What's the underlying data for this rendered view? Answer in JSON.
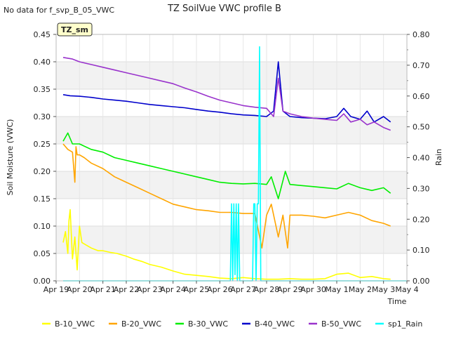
{
  "no_data_note": "No data for f_svp_B_05_VWC",
  "chart_data": {
    "type": "line",
    "title": "TZ SoilVue VWC profile B",
    "site_badge": "TZ_sm",
    "xlabel": "Time",
    "ylabel_left": "Soil Moisture (VWC)",
    "ylabel_right": "Rain",
    "ylim_left": [
      0.0,
      0.45
    ],
    "ylim_right": [
      0.0,
      0.8
    ],
    "xlim_days": [
      0,
      15
    ],
    "x_ticks": [
      "Apr 19",
      "Apr 20",
      "Apr 21",
      "Apr 22",
      "Apr 23",
      "Apr 24",
      "Apr 25",
      "Apr 26",
      "Apr 27",
      "Apr 28",
      "Apr 29",
      "Apr 30",
      "May 1",
      "May 2",
      "May 3",
      "May 4"
    ],
    "y_ticks_left": [
      "0.00",
      "0.05",
      "0.10",
      "0.15",
      "0.20",
      "0.25",
      "0.30",
      "0.35",
      "0.40",
      "0.45"
    ],
    "y_ticks_right": [
      "0.00",
      "0.10",
      "0.20",
      "0.30",
      "0.40",
      "0.50",
      "0.60",
      "0.70",
      "0.80"
    ],
    "grid": true,
    "legend_position": "bottom",
    "series": [
      {
        "name": "B-10_VWC",
        "color": "#ffff00",
        "axis": "left",
        "x": [
          0.3,
          0.4,
          0.5,
          0.55,
          0.6,
          0.7,
          0.8,
          0.9,
          1.0,
          1.1,
          1.3,
          1.5,
          1.8,
          2.0,
          2.3,
          2.6,
          3.0,
          3.3,
          3.7,
          4.0,
          4.5,
          5.0,
          5.5,
          6.0,
          6.5,
          7.0,
          7.5,
          8.0,
          8.5,
          9.0,
          9.5,
          10.0,
          10.5,
          11.0,
          11.5,
          12.0,
          12.5,
          13.0,
          13.5,
          14.0,
          14.3
        ],
        "y": [
          0.07,
          0.09,
          0.05,
          0.11,
          0.13,
          0.04,
          0.08,
          0.02,
          0.1,
          0.07,
          0.065,
          0.06,
          0.055,
          0.055,
          0.052,
          0.05,
          0.045,
          0.04,
          0.035,
          0.03,
          0.025,
          0.018,
          0.012,
          0.01,
          0.008,
          0.005,
          0.004,
          0.006,
          0.004,
          0.003,
          0.003,
          0.004,
          0.003,
          0.003,
          0.004,
          0.012,
          0.014,
          0.006,
          0.008,
          0.004,
          0.003
        ]
      },
      {
        "name": "B-20_VWC",
        "color": "#ffa500",
        "axis": "left",
        "x": [
          0.3,
          0.5,
          0.7,
          0.8,
          0.85,
          0.9,
          1.0,
          1.2,
          1.5,
          2.0,
          2.5,
          3.0,
          3.5,
          4.0,
          4.5,
          5.0,
          5.5,
          6.0,
          6.5,
          7.0,
          7.5,
          8.0,
          8.5,
          8.8,
          9.0,
          9.2,
          9.5,
          9.7,
          9.9,
          10.0,
          10.5,
          11.0,
          11.5,
          12.0,
          12.5,
          13.0,
          13.5,
          14.0,
          14.3
        ],
        "y": [
          0.25,
          0.24,
          0.235,
          0.18,
          0.245,
          0.23,
          0.23,
          0.225,
          0.215,
          0.205,
          0.19,
          0.18,
          0.17,
          0.16,
          0.15,
          0.14,
          0.135,
          0.13,
          0.128,
          0.125,
          0.125,
          0.123,
          0.123,
          0.06,
          0.12,
          0.14,
          0.08,
          0.12,
          0.06,
          0.12,
          0.12,
          0.118,
          0.115,
          0.12,
          0.125,
          0.12,
          0.11,
          0.105,
          0.1
        ]
      },
      {
        "name": "B-30_VWC",
        "color": "#00ee00",
        "axis": "left",
        "x": [
          0.3,
          0.5,
          0.7,
          1.0,
          1.5,
          2.0,
          2.5,
          3.0,
          3.5,
          4.0,
          4.5,
          5.0,
          5.5,
          6.0,
          6.5,
          7.0,
          7.5,
          8.0,
          8.5,
          9.0,
          9.2,
          9.5,
          9.8,
          10.0,
          10.5,
          11.0,
          11.5,
          12.0,
          12.5,
          13.0,
          13.5,
          14.0,
          14.3
        ],
        "y": [
          0.255,
          0.27,
          0.25,
          0.25,
          0.24,
          0.235,
          0.225,
          0.22,
          0.215,
          0.21,
          0.205,
          0.2,
          0.195,
          0.19,
          0.185,
          0.18,
          0.178,
          0.177,
          0.178,
          0.176,
          0.19,
          0.15,
          0.2,
          0.176,
          0.174,
          0.172,
          0.17,
          0.168,
          0.178,
          0.17,
          0.165,
          0.17,
          0.16
        ]
      },
      {
        "name": "B-40_VWC",
        "color": "#0000cc",
        "axis": "left",
        "x": [
          0.3,
          0.6,
          1.0,
          1.5,
          2.0,
          2.5,
          3.0,
          3.5,
          4.0,
          4.5,
          5.0,
          5.5,
          6.0,
          6.5,
          7.0,
          7.5,
          8.0,
          8.5,
          9.0,
          9.3,
          9.5,
          9.7,
          10.0,
          10.5,
          11.0,
          11.5,
          12.0,
          12.3,
          12.6,
          13.0,
          13.3,
          13.6,
          14.0,
          14.3
        ],
        "y": [
          0.34,
          0.338,
          0.337,
          0.335,
          0.332,
          0.33,
          0.328,
          0.325,
          0.322,
          0.32,
          0.318,
          0.316,
          0.313,
          0.31,
          0.308,
          0.305,
          0.303,
          0.302,
          0.3,
          0.31,
          0.4,
          0.31,
          0.3,
          0.298,
          0.297,
          0.296,
          0.3,
          0.315,
          0.3,
          0.295,
          0.31,
          0.29,
          0.3,
          0.29
        ]
      },
      {
        "name": "B-50_VWC",
        "color": "#9933cc",
        "axis": "left",
        "x": [
          0.3,
          0.7,
          1.0,
          1.5,
          2.0,
          2.5,
          3.0,
          3.5,
          4.0,
          4.5,
          5.0,
          5.5,
          6.0,
          6.5,
          7.0,
          7.5,
          8.0,
          8.5,
          9.0,
          9.3,
          9.5,
          9.7,
          10.0,
          10.5,
          11.0,
          11.5,
          12.0,
          12.3,
          12.6,
          13.0,
          13.3,
          13.6,
          14.0,
          14.3
        ],
        "y": [
          0.408,
          0.405,
          0.4,
          0.395,
          0.39,
          0.385,
          0.38,
          0.375,
          0.37,
          0.365,
          0.36,
          0.352,
          0.345,
          0.337,
          0.33,
          0.325,
          0.32,
          0.317,
          0.315,
          0.3,
          0.37,
          0.31,
          0.305,
          0.3,
          0.297,
          0.295,
          0.293,
          0.305,
          0.29,
          0.295,
          0.285,
          0.29,
          0.28,
          0.275
        ]
      },
      {
        "name": "sp1_Rain",
        "color": "#00ffff",
        "axis": "right",
        "x": [
          0.3,
          7.45,
          7.5,
          7.55,
          7.6,
          7.65,
          7.7,
          7.75,
          7.8,
          7.85,
          7.9,
          8.4,
          8.45,
          8.5,
          8.55,
          8.6,
          8.65,
          8.7,
          8.75,
          8.8,
          8.85,
          15.0
        ],
        "y": [
          0.0,
          0.0,
          0.25,
          0.0,
          0.25,
          0.02,
          0.25,
          0.0,
          0.25,
          0.0,
          0.0,
          0.0,
          0.25,
          0.25,
          0.0,
          0.25,
          0.25,
          0.76,
          0.0,
          0.0,
          0.0,
          0.0
        ]
      }
    ]
  }
}
